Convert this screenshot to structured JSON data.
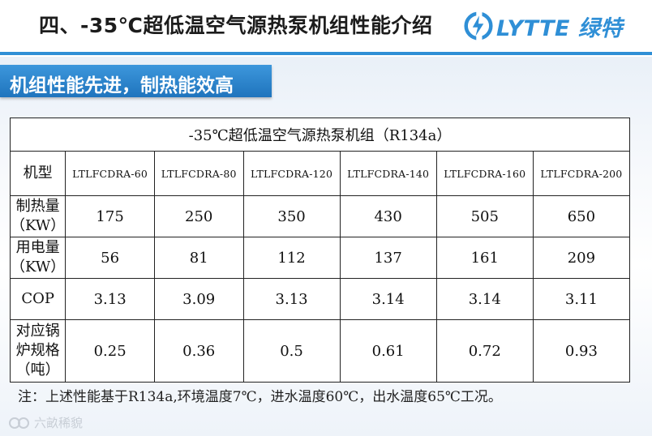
{
  "header": {
    "title": "四、-35℃超低温空气源热泵机组性能介绍",
    "logo_text": "LYTTE 绿特"
  },
  "section_title": "机组性能先进，制热能效高",
  "table": {
    "caption": "-35℃超低温空气源热泵机组（R134a）",
    "model_label": "机型",
    "models": [
      "LTLFCDRA-60",
      "LTLFCDRA-80",
      "LTLFCDRA-120",
      "LTLFCDRA-140",
      "LTLFCDRA-160",
      "LTLFCDRA-200"
    ],
    "heating": {
      "label_line1": "制热量",
      "label_line2": "（KW）",
      "values": [
        "175",
        "250",
        "350",
        "430",
        "505",
        "650"
      ]
    },
    "power": {
      "label_line1": "用电量",
      "label_line2": "（KW）",
      "values": [
        "56",
        "81",
        "112",
        "137",
        "161",
        "209"
      ]
    },
    "cop": {
      "label": "COP",
      "values": [
        "3.13",
        "3.09",
        "3.13",
        "3.14",
        "3.14",
        "3.11"
      ]
    },
    "boiler": {
      "label_line1": "对应锅",
      "label_line2": "炉规格",
      "label_line3": "（吨）",
      "values": [
        "0.25",
        "0.36",
        "0.5",
        "0.61",
        "0.72",
        "0.93"
      ]
    }
  },
  "note": "注：上述性能基于R134a,环境温度7℃，进水温度60℃，出水温度65℃工况。",
  "watermark": "六畝稀貌",
  "colors": {
    "accent": "#2f8fd6",
    "section_bar": "#1f74bd"
  }
}
